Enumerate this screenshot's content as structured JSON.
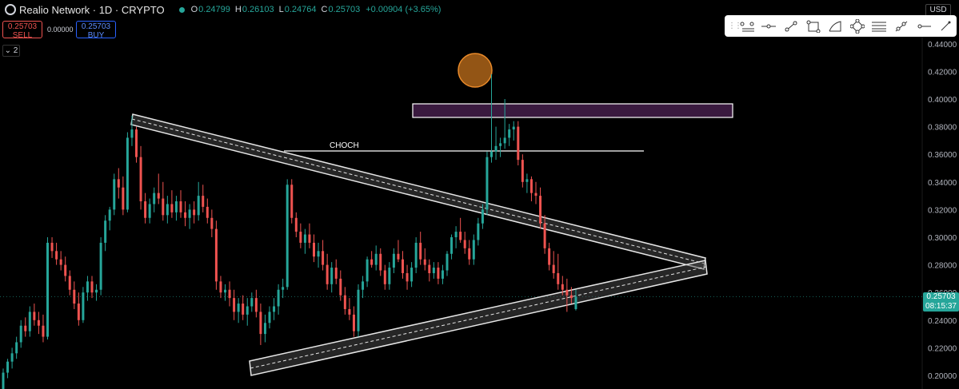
{
  "header": {
    "symbol": "Realio Network · 1D · CRYPTO",
    "ohlc": [
      {
        "key": "O",
        "value": "0.24799"
      },
      {
        "key": "H",
        "value": "0.26103"
      },
      {
        "key": "L",
        "value": "0.24764"
      },
      {
        "key": "C",
        "value": "0.25703"
      }
    ],
    "change": "+0.00904 (+3.65%)"
  },
  "trade": {
    "sell_price": "0.25703",
    "sell_label": "SELL",
    "spread": "0.00000",
    "buy_price": "0.25703",
    "buy_label": "BUY"
  },
  "collapse_label": "2",
  "currency": "USD",
  "price_axis": {
    "ticks": [
      "0.44000",
      "0.42000",
      "0.40000",
      "0.38000",
      "0.36000",
      "0.34000",
      "0.32000",
      "0.30000",
      "0.28000",
      "0.26000",
      "0.24000",
      "0.22000",
      "0.20000"
    ],
    "current_price": "0.25703",
    "countdown": "08:15:37"
  },
  "annotation_choch": "CHOCH",
  "drawing_tools": [
    "line-tool-icon",
    "horizontal-line-icon",
    "trend-line-icon",
    "rectangle-icon",
    "path-icon",
    "polygon-icon",
    "parallel-channel-icon",
    "ray-icon",
    "horizontal-ray-icon",
    "more-tools-icon"
  ],
  "colors": {
    "up": "#26a69a",
    "down": "#ef5350",
    "background": "#000000",
    "zone": "#3a1a3f"
  },
  "chart_data": {
    "type": "candlestick",
    "ylim": [
      0.195,
      0.45
    ],
    "candles": [
      [
        0.19,
        0.205,
        0.188,
        0.202
      ],
      [
        0.202,
        0.212,
        0.198,
        0.21
      ],
      [
        0.21,
        0.22,
        0.205,
        0.216
      ],
      [
        0.216,
        0.228,
        0.212,
        0.224
      ],
      [
        0.224,
        0.24,
        0.22,
        0.236
      ],
      [
        0.236,
        0.242,
        0.228,
        0.232
      ],
      [
        0.232,
        0.25,
        0.228,
        0.246
      ],
      [
        0.246,
        0.252,
        0.236,
        0.24
      ],
      [
        0.24,
        0.246,
        0.23,
        0.236
      ],
      [
        0.236,
        0.244,
        0.224,
        0.228
      ],
      [
        0.228,
        0.3,
        0.226,
        0.296
      ],
      [
        0.296,
        0.3,
        0.285,
        0.29
      ],
      [
        0.29,
        0.296,
        0.28,
        0.284
      ],
      [
        0.284,
        0.29,
        0.276,
        0.28
      ],
      [
        0.28,
        0.286,
        0.268,
        0.272
      ],
      [
        0.272,
        0.276,
        0.258,
        0.262
      ],
      [
        0.262,
        0.268,
        0.248,
        0.252
      ],
      [
        0.252,
        0.26,
        0.236,
        0.24
      ],
      [
        0.24,
        0.264,
        0.238,
        0.26
      ],
      [
        0.26,
        0.272,
        0.254,
        0.268
      ],
      [
        0.268,
        0.272,
        0.256,
        0.26
      ],
      [
        0.26,
        0.266,
        0.254,
        0.262
      ],
      [
        0.262,
        0.3,
        0.258,
        0.296
      ],
      [
        0.296,
        0.316,
        0.29,
        0.312
      ],
      [
        0.312,
        0.322,
        0.305,
        0.32
      ],
      [
        0.32,
        0.346,
        0.316,
        0.342
      ],
      [
        0.342,
        0.35,
        0.328,
        0.336
      ],
      [
        0.336,
        0.344,
        0.316,
        0.32
      ],
      [
        0.32,
        0.376,
        0.318,
        0.372
      ],
      [
        0.372,
        0.388,
        0.366,
        0.378
      ],
      [
        0.378,
        0.38,
        0.354,
        0.358
      ],
      [
        0.358,
        0.366,
        0.32,
        0.326
      ],
      [
        0.326,
        0.332,
        0.31,
        0.314
      ],
      [
        0.314,
        0.328,
        0.31,
        0.324
      ],
      [
        0.324,
        0.336,
        0.318,
        0.332
      ],
      [
        0.332,
        0.346,
        0.324,
        0.328
      ],
      [
        0.328,
        0.34,
        0.312,
        0.316
      ],
      [
        0.316,
        0.33,
        0.31,
        0.324
      ],
      [
        0.324,
        0.334,
        0.314,
        0.318
      ],
      [
        0.318,
        0.33,
        0.312,
        0.326
      ],
      [
        0.326,
        0.334,
        0.314,
        0.318
      ],
      [
        0.318,
        0.326,
        0.308,
        0.314
      ],
      [
        0.314,
        0.324,
        0.306,
        0.32
      ],
      [
        0.32,
        0.326,
        0.31,
        0.316
      ],
      [
        0.316,
        0.34,
        0.312,
        0.33
      ],
      [
        0.33,
        0.338,
        0.318,
        0.322
      ],
      [
        0.322,
        0.328,
        0.31,
        0.314
      ],
      [
        0.314,
        0.32,
        0.3,
        0.306
      ],
      [
        0.306,
        0.312,
        0.262,
        0.268
      ],
      [
        0.268,
        0.272,
        0.256,
        0.26
      ],
      [
        0.26,
        0.266,
        0.254,
        0.262
      ],
      [
        0.262,
        0.268,
        0.25,
        0.256
      ],
      [
        0.256,
        0.262,
        0.24,
        0.246
      ],
      [
        0.246,
        0.256,
        0.238,
        0.252
      ],
      [
        0.252,
        0.258,
        0.24,
        0.244
      ],
      [
        0.244,
        0.256,
        0.236,
        0.25
      ],
      [
        0.25,
        0.26,
        0.246,
        0.256
      ],
      [
        0.256,
        0.262,
        0.242,
        0.246
      ],
      [
        0.246,
        0.252,
        0.222,
        0.23
      ],
      [
        0.23,
        0.244,
        0.224,
        0.238
      ],
      [
        0.238,
        0.25,
        0.234,
        0.246
      ],
      [
        0.246,
        0.256,
        0.24,
        0.25
      ],
      [
        0.25,
        0.266,
        0.244,
        0.262
      ],
      [
        0.262,
        0.27,
        0.256,
        0.264
      ],
      [
        0.264,
        0.342,
        0.262,
        0.338
      ],
      [
        0.338,
        0.342,
        0.31,
        0.314
      ],
      [
        0.314,
        0.318,
        0.3,
        0.304
      ],
      [
        0.304,
        0.31,
        0.292,
        0.296
      ],
      [
        0.296,
        0.306,
        0.288,
        0.302
      ],
      [
        0.302,
        0.31,
        0.292,
        0.296
      ],
      [
        0.296,
        0.302,
        0.282,
        0.286
      ],
      [
        0.286,
        0.296,
        0.278,
        0.29
      ],
      [
        0.29,
        0.298,
        0.276,
        0.28
      ],
      [
        0.28,
        0.288,
        0.262,
        0.266
      ],
      [
        0.266,
        0.282,
        0.26,
        0.278
      ],
      [
        0.278,
        0.284,
        0.266,
        0.27
      ],
      [
        0.27,
        0.276,
        0.254,
        0.258
      ],
      [
        0.258,
        0.264,
        0.244,
        0.248
      ],
      [
        0.248,
        0.256,
        0.24,
        0.244
      ],
      [
        0.244,
        0.25,
        0.228,
        0.232
      ],
      [
        0.232,
        0.266,
        0.228,
        0.262
      ],
      [
        0.262,
        0.272,
        0.256,
        0.268
      ],
      [
        0.268,
        0.286,
        0.264,
        0.284
      ],
      [
        0.284,
        0.29,
        0.278,
        0.28
      ],
      [
        0.28,
        0.294,
        0.276,
        0.288
      ],
      [
        0.288,
        0.292,
        0.272,
        0.276
      ],
      [
        0.276,
        0.28,
        0.262,
        0.266
      ],
      [
        0.266,
        0.282,
        0.262,
        0.278
      ],
      [
        0.278,
        0.292,
        0.274,
        0.288
      ],
      [
        0.288,
        0.298,
        0.282,
        0.284
      ],
      [
        0.284,
        0.29,
        0.27,
        0.274
      ],
      [
        0.274,
        0.28,
        0.262,
        0.268
      ],
      [
        0.268,
        0.282,
        0.264,
        0.278
      ],
      [
        0.278,
        0.3,
        0.274,
        0.296
      ],
      [
        0.296,
        0.304,
        0.28,
        0.284
      ],
      [
        0.284,
        0.292,
        0.276,
        0.28
      ],
      [
        0.28,
        0.284,
        0.268,
        0.274
      ],
      [
        0.274,
        0.282,
        0.27,
        0.278
      ],
      [
        0.278,
        0.282,
        0.266,
        0.27
      ],
      [
        0.27,
        0.28,
        0.266,
        0.276
      ],
      [
        0.276,
        0.29,
        0.272,
        0.288
      ],
      [
        0.288,
        0.302,
        0.284,
        0.3
      ],
      [
        0.3,
        0.308,
        0.292,
        0.304
      ],
      [
        0.304,
        0.314,
        0.296,
        0.298
      ],
      [
        0.298,
        0.304,
        0.288,
        0.292
      ],
      [
        0.292,
        0.298,
        0.28,
        0.284
      ],
      [
        0.284,
        0.302,
        0.28,
        0.298
      ],
      [
        0.298,
        0.314,
        0.294,
        0.31
      ],
      [
        0.31,
        0.324,
        0.306,
        0.32
      ],
      [
        0.32,
        0.362,
        0.316,
        0.358
      ],
      [
        0.358,
        0.418,
        0.354,
        0.362
      ],
      [
        0.362,
        0.38,
        0.356,
        0.366
      ],
      [
        0.366,
        0.372,
        0.358,
        0.368
      ],
      [
        0.368,
        0.4,
        0.364,
        0.372
      ],
      [
        0.372,
        0.382,
        0.366,
        0.378
      ],
      [
        0.378,
        0.384,
        0.37,
        0.38
      ],
      [
        0.38,
        0.384,
        0.352,
        0.356
      ],
      [
        0.356,
        0.36,
        0.336,
        0.34
      ],
      [
        0.34,
        0.346,
        0.332,
        0.342
      ],
      [
        0.342,
        0.344,
        0.326,
        0.332
      ],
      [
        0.332,
        0.34,
        0.324,
        0.33
      ],
      [
        0.33,
        0.336,
        0.306,
        0.31
      ],
      [
        0.31,
        0.316,
        0.288,
        0.292
      ],
      [
        0.292,
        0.296,
        0.276,
        0.28
      ],
      [
        0.28,
        0.29,
        0.27,
        0.274
      ],
      [
        0.274,
        0.288,
        0.262,
        0.266
      ],
      [
        0.266,
        0.272,
        0.258,
        0.262
      ],
      [
        0.262,
        0.27,
        0.246,
        0.258
      ],
      [
        0.258,
        0.264,
        0.252,
        0.256
      ],
      [
        0.248,
        0.262,
        0.247,
        0.257
      ]
    ]
  }
}
